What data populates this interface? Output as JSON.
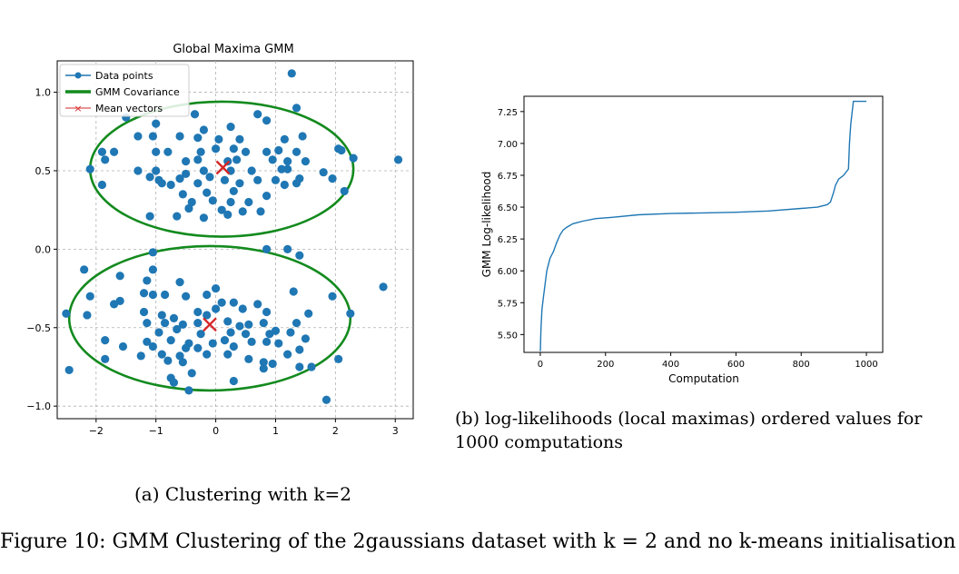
{
  "figure_caption": "Figure 10: GMM Clustering of the 2gaussians dataset with k = 2 and no k-means initialisation",
  "captions": {
    "a": "(a) Clustering with k=2",
    "b": "(b) log-likelihoods (local maximas) ordered values for 1000 computations"
  },
  "chart_data": [
    {
      "type": "scatter",
      "title": "Global Maxima GMM",
      "xlabel": "",
      "ylabel": "",
      "xlim": [
        -2.65,
        3.3
      ],
      "ylim": [
        -1.08,
        1.2
      ],
      "xticks": [
        -2,
        -1,
        0,
        1,
        2,
        3
      ],
      "yticks": [
        -1.0,
        -0.5,
        0.0,
        0.5,
        1.0
      ],
      "grid": true,
      "legend_position": "top-left",
      "legend": [
        "Data points",
        "GMM Covariance",
        "Mean vectors"
      ],
      "colors": {
        "points": "#1f77b4",
        "ellipse": "#138a1e",
        "mean": "#d62728"
      },
      "series": [
        {
          "name": "Data points",
          "points": [
            [
              -1.5,
              0.84
            ],
            [
              -1.0,
              0.8
            ],
            [
              -0.35,
              0.86
            ],
            [
              -0.2,
              0.76
            ],
            [
              0.25,
              0.78
            ],
            [
              0.7,
              0.86
            ],
            [
              0.85,
              0.82
            ],
            [
              1.35,
              0.9
            ],
            [
              1.27,
              1.12
            ],
            [
              -1.3,
              0.72
            ],
            [
              -1.05,
              0.72
            ],
            [
              -0.6,
              0.72
            ],
            [
              -0.3,
              0.71
            ],
            [
              0.05,
              0.7
            ],
            [
              0.4,
              0.7
            ],
            [
              1.15,
              0.7
            ],
            [
              1.45,
              0.72
            ],
            [
              0.3,
              0.64
            ],
            [
              -1.9,
              0.62
            ],
            [
              -1.7,
              0.62
            ],
            [
              -1.0,
              0.62
            ],
            [
              -0.8,
              0.62
            ],
            [
              -0.25,
              0.62
            ],
            [
              0.0,
              0.64
            ],
            [
              0.5,
              0.62
            ],
            [
              0.85,
              0.62
            ],
            [
              1.05,
              0.63
            ],
            [
              1.35,
              0.62
            ],
            [
              2.05,
              0.64
            ],
            [
              2.1,
              0.63
            ],
            [
              -1.85,
              0.57
            ],
            [
              -0.5,
              0.56
            ],
            [
              -0.3,
              0.57
            ],
            [
              0.2,
              0.56
            ],
            [
              0.35,
              0.57
            ],
            [
              0.95,
              0.57
            ],
            [
              1.2,
              0.56
            ],
            [
              1.5,
              0.56
            ],
            [
              2.3,
              0.58
            ],
            [
              3.05,
              0.57
            ],
            [
              -2.1,
              0.51
            ],
            [
              -1.3,
              0.5
            ],
            [
              -1.0,
              0.5
            ],
            [
              -0.5,
              0.48
            ],
            [
              -0.2,
              0.5
            ],
            [
              0.25,
              0.5
            ],
            [
              0.6,
              0.5
            ],
            [
              1.1,
              0.51
            ],
            [
              1.2,
              0.51
            ],
            [
              1.8,
              0.49
            ],
            [
              -1.1,
              0.46
            ],
            [
              -0.95,
              0.44
            ],
            [
              -0.6,
              0.45
            ],
            [
              -0.1,
              0.46
            ],
            [
              0.15,
              0.44
            ],
            [
              0.7,
              0.44
            ],
            [
              1.0,
              0.44
            ],
            [
              1.4,
              0.45
            ],
            [
              1.95,
              0.45
            ],
            [
              -1.9,
              0.41
            ],
            [
              -0.9,
              0.42
            ],
            [
              -0.75,
              0.41
            ],
            [
              -0.3,
              0.42
            ],
            [
              0.4,
              0.42
            ],
            [
              1.15,
              0.41
            ],
            [
              1.35,
              0.42
            ],
            [
              2.15,
              0.37
            ],
            [
              -0.55,
              0.35
            ],
            [
              -0.15,
              0.36
            ],
            [
              0.3,
              0.37
            ],
            [
              0.85,
              0.34
            ],
            [
              -0.4,
              0.3
            ],
            [
              -0.05,
              0.31
            ],
            [
              0.25,
              0.3
            ],
            [
              0.55,
              0.3
            ],
            [
              -0.45,
              0.26
            ],
            [
              0.1,
              0.25
            ],
            [
              0.45,
              0.24
            ],
            [
              0.75,
              0.24
            ],
            [
              -1.1,
              0.21
            ],
            [
              -0.65,
              0.21
            ],
            [
              -0.2,
              0.2
            ],
            [
              0.2,
              0.22
            ],
            [
              -1.05,
              -0.02
            ],
            [
              0.85,
              0.0
            ],
            [
              1.2,
              0.0
            ],
            [
              1.4,
              -0.04
            ],
            [
              -2.2,
              -0.13
            ],
            [
              -1.6,
              -0.17
            ],
            [
              -1.05,
              -0.13
            ],
            [
              -1.15,
              -0.2
            ],
            [
              -0.6,
              -0.21
            ],
            [
              0.0,
              -0.25
            ],
            [
              1.3,
              -0.27
            ],
            [
              2.8,
              -0.24
            ],
            [
              -2.1,
              -0.3
            ],
            [
              -1.6,
              -0.33
            ],
            [
              -1.2,
              -0.28
            ],
            [
              -1.05,
              -0.29
            ],
            [
              -0.85,
              -0.29
            ],
            [
              -0.5,
              -0.3
            ],
            [
              -0.15,
              -0.29
            ],
            [
              0.1,
              -0.34
            ],
            [
              0.3,
              -0.34
            ],
            [
              0.7,
              -0.35
            ],
            [
              1.95,
              -0.3
            ],
            [
              -2.5,
              -0.41
            ],
            [
              -2.15,
              -0.42
            ],
            [
              -1.7,
              -0.35
            ],
            [
              -1.2,
              -0.4
            ],
            [
              -0.9,
              -0.42
            ],
            [
              -0.7,
              -0.44
            ],
            [
              -0.3,
              -0.4
            ],
            [
              -0.15,
              -0.42
            ],
            [
              0.0,
              -0.38
            ],
            [
              0.45,
              -0.38
            ],
            [
              0.85,
              -0.4
            ],
            [
              1.55,
              -0.41
            ],
            [
              2.25,
              -0.41
            ],
            [
              -1.15,
              -0.47
            ],
            [
              -0.85,
              -0.47
            ],
            [
              -0.55,
              -0.48
            ],
            [
              -0.3,
              -0.47
            ],
            [
              0.2,
              -0.46
            ],
            [
              0.4,
              -0.49
            ],
            [
              0.55,
              -0.48
            ],
            [
              0.8,
              -0.47
            ],
            [
              1.0,
              -0.52
            ],
            [
              1.35,
              -0.47
            ],
            [
              -0.95,
              -0.53
            ],
            [
              -0.65,
              -0.51
            ],
            [
              -0.25,
              -0.54
            ],
            [
              0.25,
              -0.53
            ],
            [
              0.5,
              -0.54
            ],
            [
              0.9,
              -0.54
            ],
            [
              1.25,
              -0.53
            ],
            [
              -1.85,
              -0.58
            ],
            [
              -1.15,
              -0.59
            ],
            [
              -0.75,
              -0.58
            ],
            [
              -0.45,
              -0.6
            ],
            [
              -0.05,
              -0.6
            ],
            [
              0.15,
              -0.58
            ],
            [
              0.6,
              -0.59
            ],
            [
              0.85,
              -0.59
            ],
            [
              1.05,
              -0.6
            ],
            [
              1.5,
              -0.57
            ],
            [
              -1.55,
              -0.62
            ],
            [
              -1.05,
              -0.62
            ],
            [
              -0.5,
              -0.63
            ],
            [
              -0.3,
              -0.63
            ],
            [
              0.3,
              -0.62
            ],
            [
              1.4,
              -0.64
            ],
            [
              -1.25,
              -0.68
            ],
            [
              -0.9,
              -0.67
            ],
            [
              -0.6,
              -0.68
            ],
            [
              -0.15,
              -0.67
            ],
            [
              0.2,
              -0.67
            ],
            [
              0.55,
              -0.7
            ],
            [
              1.2,
              -0.67
            ],
            [
              -1.85,
              -0.7
            ],
            [
              -0.8,
              -0.71
            ],
            [
              -0.55,
              -0.72
            ],
            [
              0.8,
              -0.72
            ],
            [
              0.95,
              -0.73
            ],
            [
              1.4,
              -0.75
            ],
            [
              1.6,
              -0.75
            ],
            [
              2.05,
              -0.7
            ],
            [
              -2.45,
              -0.77
            ],
            [
              -0.75,
              -0.82
            ],
            [
              -0.7,
              -0.85
            ],
            [
              -0.4,
              -0.79
            ],
            [
              0.3,
              -0.84
            ],
            [
              0.8,
              -0.76
            ],
            [
              -0.45,
              -0.9
            ],
            [
              1.85,
              -0.96
            ]
          ]
        },
        {
          "name": "GMM Covariance",
          "ellipses": [
            {
              "cx": 0.1,
              "cy": 0.51,
              "rx": 2.2,
              "ry": 0.43
            },
            {
              "cx": -0.1,
              "cy": -0.44,
              "rx": 2.35,
              "ry": 0.46
            }
          ]
        },
        {
          "name": "Mean vectors",
          "points": [
            [
              0.12,
              0.52
            ],
            [
              -0.1,
              -0.48
            ]
          ]
        }
      ]
    },
    {
      "type": "line",
      "title": "",
      "xlabel": "Computation",
      "ylabel": "GMM Log-likelihood",
      "xlim": [
        -50,
        1050
      ],
      "ylim": [
        5.36,
        7.37
      ],
      "xticks": [
        0,
        200,
        400,
        600,
        800,
        1000
      ],
      "yticks": [
        5.5,
        5.75,
        6.0,
        6.25,
        6.5,
        6.75,
        7.0,
        7.25
      ],
      "grid": false,
      "colors": {
        "line": "#1f77b4"
      },
      "series": [
        {
          "name": "",
          "x": [
            0,
            2,
            5,
            10,
            15,
            20,
            25,
            30,
            40,
            50,
            60,
            70,
            80,
            100,
            130,
            170,
            220,
            300,
            400,
            500,
            600,
            700,
            800,
            850,
            880,
            890,
            900,
            905,
            915,
            930,
            945,
            948,
            952,
            960,
            975,
            1000
          ],
          "y": [
            5.37,
            5.55,
            5.7,
            5.8,
            5.9,
            6.0,
            6.05,
            6.1,
            6.15,
            6.22,
            6.28,
            6.32,
            6.34,
            6.37,
            6.39,
            6.41,
            6.42,
            6.44,
            6.45,
            6.455,
            6.46,
            6.47,
            6.49,
            6.5,
            6.52,
            6.54,
            6.62,
            6.67,
            6.72,
            6.75,
            6.8,
            7.0,
            7.15,
            7.33,
            7.33,
            7.33
          ]
        }
      ]
    }
  ]
}
